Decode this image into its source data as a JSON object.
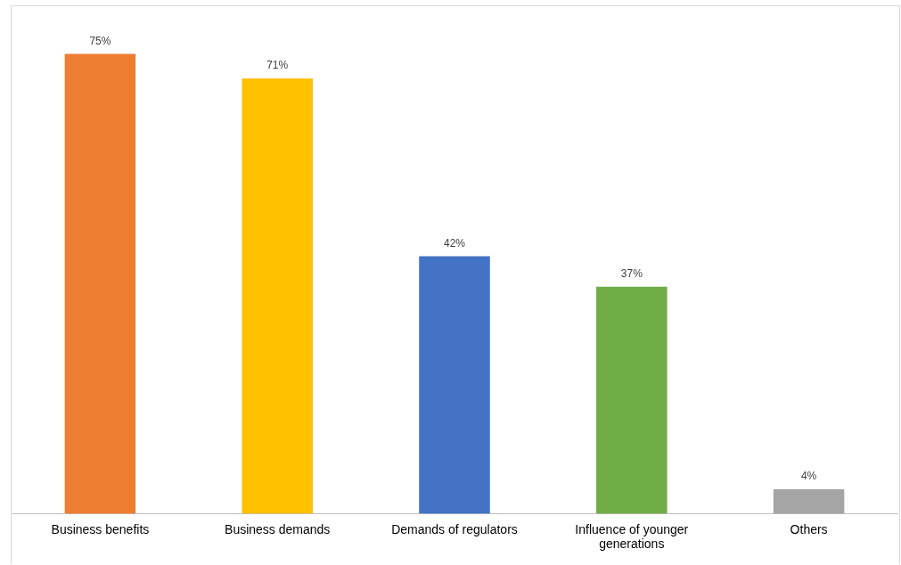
{
  "chart_data": {
    "type": "bar",
    "categories": [
      "Business benefits",
      "Business demands",
      "Demands of regulators",
      "Influence of younger generations",
      "Others"
    ],
    "values": [
      75,
      71,
      42,
      37,
      4
    ],
    "value_labels": [
      "75%",
      "71%",
      "42%",
      "37%",
      "4%"
    ],
    "colors": [
      "#ed7d31",
      "#ffc000",
      "#4472c4",
      "#70ad47",
      "#a5a5a5"
    ],
    "grid": false,
    "legend": false
  }
}
